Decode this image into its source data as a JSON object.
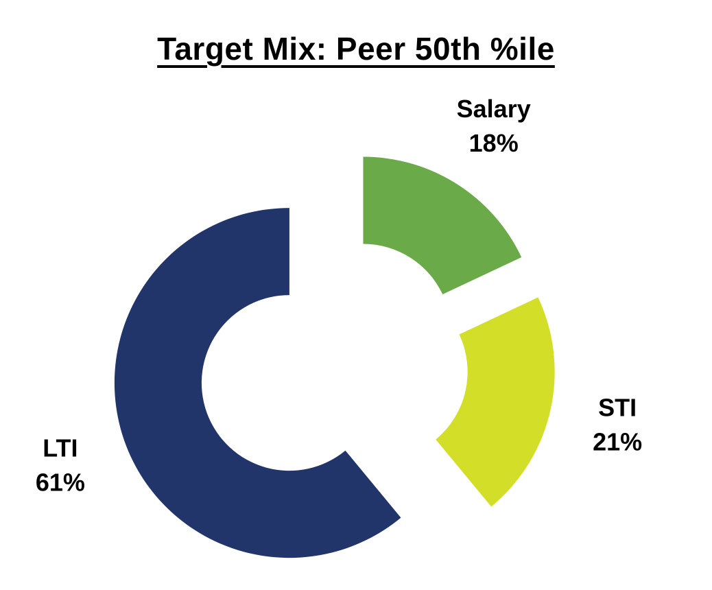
{
  "chart_data": {
    "type": "pie",
    "subtype": "exploded-donut",
    "title": "Target Mix: Peer 50th %ile",
    "labels": [
      "Salary",
      "STI",
      "LTI"
    ],
    "values": [
      18,
      21,
      61
    ],
    "value_labels": [
      "18%",
      "21%",
      "61%"
    ],
    "colors": [
      "#6aaa48",
      "#d2de28",
      "#22356a"
    ],
    "legend": "none"
  }
}
